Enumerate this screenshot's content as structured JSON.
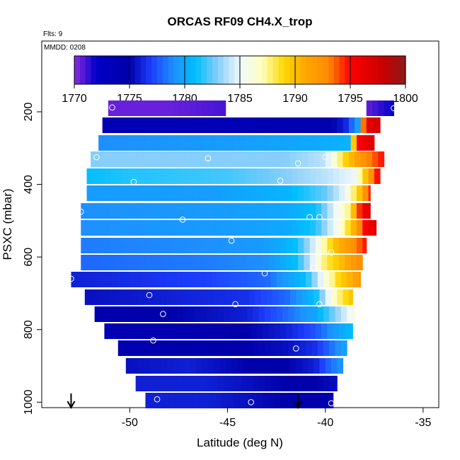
{
  "chart_data": {
    "type": "heatmap",
    "title": "ORCAS RF09 CH4.X_trop",
    "annotations": {
      "flts": "Flts: 9",
      "mmdd": "MMDD: 0208"
    },
    "xlabel": "Latitude (deg N)",
    "ylabel": "PSXC (mbar)",
    "xlim": [
      -54.5,
      -34.2
    ],
    "ylim": [
      1015,
      5
    ],
    "x_ticks": [
      -50,
      -45,
      -40,
      -35
    ],
    "y_ticks": [
      200,
      400,
      600,
      800,
      1000
    ],
    "y_reversed": true,
    "grid": false,
    "colorbar": {
      "ticks": [
        1770,
        1775,
        1780,
        1785,
        1790,
        1795,
        1800
      ],
      "range": [
        1770,
        1800
      ],
      "stops": [
        {
          "v": 1770,
          "c": "#8b2be2"
        },
        {
          "v": 1772,
          "c": "#0000c8"
        },
        {
          "v": 1775,
          "c": "#0000aa"
        },
        {
          "v": 1777,
          "c": "#1e40ff"
        },
        {
          "v": 1779,
          "c": "#1e90ff"
        },
        {
          "v": 1781,
          "c": "#00bfff"
        },
        {
          "v": 1783,
          "c": "#87cefa"
        },
        {
          "v": 1785,
          "c": "#f0f8ff"
        },
        {
          "v": 1787,
          "c": "#ffffc0"
        },
        {
          "v": 1789,
          "c": "#ffd700"
        },
        {
          "v": 1791,
          "c": "#ffa500"
        },
        {
          "v": 1793,
          "c": "#ff8c00"
        },
        {
          "v": 1795,
          "c": "#ff0000"
        },
        {
          "v": 1798,
          "c": "#c80000"
        },
        {
          "v": 1800,
          "c": "#8b1a1a"
        }
      ]
    },
    "rows": [
      {
        "p": 190,
        "x0": -51.1,
        "x1": -36.5,
        "gap": [
          -45.1,
          -38.0
        ],
        "pts": [
          [
            -51.1,
            1770.5
          ],
          [
            -48,
            1770.5
          ],
          [
            -45.1,
            1771
          ],
          [
            -38.0,
            1770.5
          ],
          [
            -36.5,
            1772
          ]
        ]
      },
      {
        "p": 238,
        "x0": -51.4,
        "x1": -37.2,
        "pts": [
          [
            -51.4,
            1774
          ],
          [
            -44,
            1774
          ],
          [
            -40,
            1774.5
          ],
          [
            -39.0,
            1776
          ],
          [
            -38.3,
            1780
          ],
          [
            -38.0,
            1796
          ],
          [
            -37.2,
            1797.5
          ]
        ]
      },
      {
        "p": 285,
        "x0": -51.6,
        "x1": -37.5,
        "pts": [
          [
            -51.6,
            1779
          ],
          [
            -45,
            1779.5
          ],
          [
            -41,
            1780
          ],
          [
            -38.8,
            1780.5
          ],
          [
            -38.4,
            1795
          ],
          [
            -37.5,
            1797
          ]
        ]
      },
      {
        "p": 330,
        "x0": -52.0,
        "x1": -37.0,
        "pts": [
          [
            -52.0,
            1783
          ],
          [
            -47,
            1783
          ],
          [
            -42,
            1783
          ],
          [
            -40,
            1784
          ],
          [
            -39,
            1789
          ],
          [
            -38.2,
            1792
          ],
          [
            -37.0,
            1795
          ]
        ]
      },
      {
        "p": 378,
        "x0": -52.2,
        "x1": -37.2,
        "pts": [
          [
            -52.2,
            1781
          ],
          [
            -50,
            1781.5
          ],
          [
            -45,
            1782
          ],
          [
            -42,
            1783
          ],
          [
            -40,
            1784
          ],
          [
            -38.5,
            1785
          ],
          [
            -37.7,
            1792
          ],
          [
            -37.2,
            1796
          ]
        ]
      },
      {
        "p": 425,
        "x0": -52.2,
        "x1": -37.7,
        "pts": [
          [
            -52.2,
            1779.5
          ],
          [
            -46,
            1779.5
          ],
          [
            -42,
            1780.5
          ],
          [
            -40,
            1782.5
          ],
          [
            -39,
            1785
          ],
          [
            -38.2,
            1790
          ],
          [
            -37.7,
            1795
          ]
        ]
      },
      {
        "p": 472,
        "x0": -52.5,
        "x1": -37.7,
        "pts": [
          [
            -52.5,
            1779
          ],
          [
            -45,
            1779.5
          ],
          [
            -42,
            1780
          ],
          [
            -40.5,
            1781
          ],
          [
            -39.5,
            1785
          ],
          [
            -38.7,
            1788
          ],
          [
            -38.2,
            1795
          ],
          [
            -37.7,
            1797
          ]
        ]
      },
      {
        "p": 520,
        "x0": -52.5,
        "x1": -37.4,
        "pts": [
          [
            -52.5,
            1779
          ],
          [
            -45,
            1779.5
          ],
          [
            -42,
            1780
          ],
          [
            -40.5,
            1781.5
          ],
          [
            -39.3,
            1786
          ],
          [
            -38.6,
            1790
          ],
          [
            -38.0,
            1795
          ],
          [
            -37.4,
            1797
          ]
        ]
      },
      {
        "p": 568,
        "x0": -52.5,
        "x1": -37.9,
        "pts": [
          [
            -52.5,
            1778.5
          ],
          [
            -46,
            1779
          ],
          [
            -43,
            1779.5
          ],
          [
            -41.5,
            1781
          ],
          [
            -40.5,
            1785
          ],
          [
            -39.5,
            1790
          ],
          [
            -38.7,
            1792
          ],
          [
            -37.9,
            1795
          ]
        ]
      },
      {
        "p": 615,
        "x0": -52.5,
        "x1": -38.1,
        "pts": [
          [
            -52.5,
            1778
          ],
          [
            -46,
            1778.5
          ],
          [
            -43,
            1779
          ],
          [
            -41.5,
            1781
          ],
          [
            -40.8,
            1784
          ],
          [
            -40,
            1788
          ],
          [
            -39.2,
            1790
          ],
          [
            -38.1,
            1793
          ]
        ]
      },
      {
        "p": 662,
        "x0": -53.0,
        "x1": -38.2,
        "pts": [
          [
            -53.0,
            1776
          ],
          [
            -46,
            1777
          ],
          [
            -43,
            1778
          ],
          [
            -41,
            1781
          ],
          [
            -40,
            1786
          ],
          [
            -39.3,
            1789
          ],
          [
            -38.2,
            1792
          ]
        ]
      },
      {
        "p": 710,
        "x0": -52.3,
        "x1": -38.6,
        "pts": [
          [
            -52.3,
            1775.5
          ],
          [
            -48,
            1776
          ],
          [
            -44,
            1776.5
          ],
          [
            -42,
            1778
          ],
          [
            -40.5,
            1781
          ],
          [
            -39.5,
            1787
          ],
          [
            -38.6,
            1790
          ]
        ]
      },
      {
        "p": 758,
        "x0": -51.8,
        "x1": -38.5,
        "pts": [
          [
            -51.8,
            1774.5
          ],
          [
            -48,
            1775
          ],
          [
            -44,
            1776
          ],
          [
            -42,
            1778
          ],
          [
            -40.5,
            1780
          ],
          [
            -39.5,
            1783
          ],
          [
            -38.5,
            1786
          ]
        ]
      },
      {
        "p": 805,
        "x0": -51.3,
        "x1": -38.6,
        "pts": [
          [
            -51.3,
            1774
          ],
          [
            -47,
            1774.5
          ],
          [
            -44,
            1775
          ],
          [
            -42,
            1776
          ],
          [
            -40.5,
            1777.5
          ],
          [
            -39.5,
            1779.5
          ],
          [
            -38.6,
            1781
          ]
        ]
      },
      {
        "p": 852,
        "x0": -50.6,
        "x1": -38.9,
        "pts": [
          [
            -50.6,
            1774.5
          ],
          [
            -47,
            1775
          ],
          [
            -44,
            1775
          ],
          [
            -42,
            1775.5
          ],
          [
            -40.5,
            1776.5
          ],
          [
            -39.8,
            1778
          ],
          [
            -38.9,
            1780
          ]
        ]
      },
      {
        "p": 900,
        "x0": -50.2,
        "x1": -39.1,
        "pts": [
          [
            -50.2,
            1775.5
          ],
          [
            -47,
            1776
          ],
          [
            -44,
            1775
          ],
          [
            -42,
            1775
          ],
          [
            -40.5,
            1776
          ],
          [
            -39.8,
            1778
          ],
          [
            -39.1,
            1779.5
          ]
        ]
      },
      {
        "p": 948,
        "x0": -49.7,
        "x1": -39.4,
        "pts": [
          [
            -49.7,
            1776
          ],
          [
            -46,
            1776
          ],
          [
            -44,
            1775.5
          ],
          [
            -42,
            1775
          ],
          [
            -40.5,
            1775
          ],
          [
            -39.4,
            1775.5
          ]
        ]
      },
      {
        "p": 995,
        "x0": -49.2,
        "x1": -39.6,
        "pts": [
          [
            -49.2,
            1776
          ],
          [
            -46,
            1776
          ],
          [
            -44,
            1775.5
          ],
          [
            -42,
            1775
          ],
          [
            -40.5,
            1774.5
          ],
          [
            -39.6,
            1774.5
          ]
        ]
      }
    ],
    "markers": [
      [
        -50.9,
        188
      ],
      [
        -36.5,
        190
      ],
      [
        -51.7,
        325
      ],
      [
        -46.0,
        328
      ],
      [
        -41.4,
        342
      ],
      [
        -40.0,
        325
      ],
      [
        -49.8,
        393
      ],
      [
        -42.3,
        390
      ],
      [
        -52.5,
        475
      ],
      [
        -47.3,
        497
      ],
      [
        -40.8,
        490
      ],
      [
        -40.3,
        490
      ],
      [
        -44.8,
        555
      ],
      [
        -39.7,
        587
      ],
      [
        -43.1,
        645
      ],
      [
        -40.6,
        630
      ],
      [
        -53.0,
        660
      ],
      [
        -49.0,
        705
      ],
      [
        -44.6,
        730
      ],
      [
        -40.3,
        730
      ],
      [
        -48.3,
        757
      ],
      [
        -48.8,
        830
      ],
      [
        -41.5,
        852
      ],
      [
        -48.6,
        992
      ],
      [
        -43.8,
        1000
      ],
      [
        -39.7,
        1003
      ]
    ],
    "arrows": [
      -53.0,
      -41.4
    ]
  }
}
